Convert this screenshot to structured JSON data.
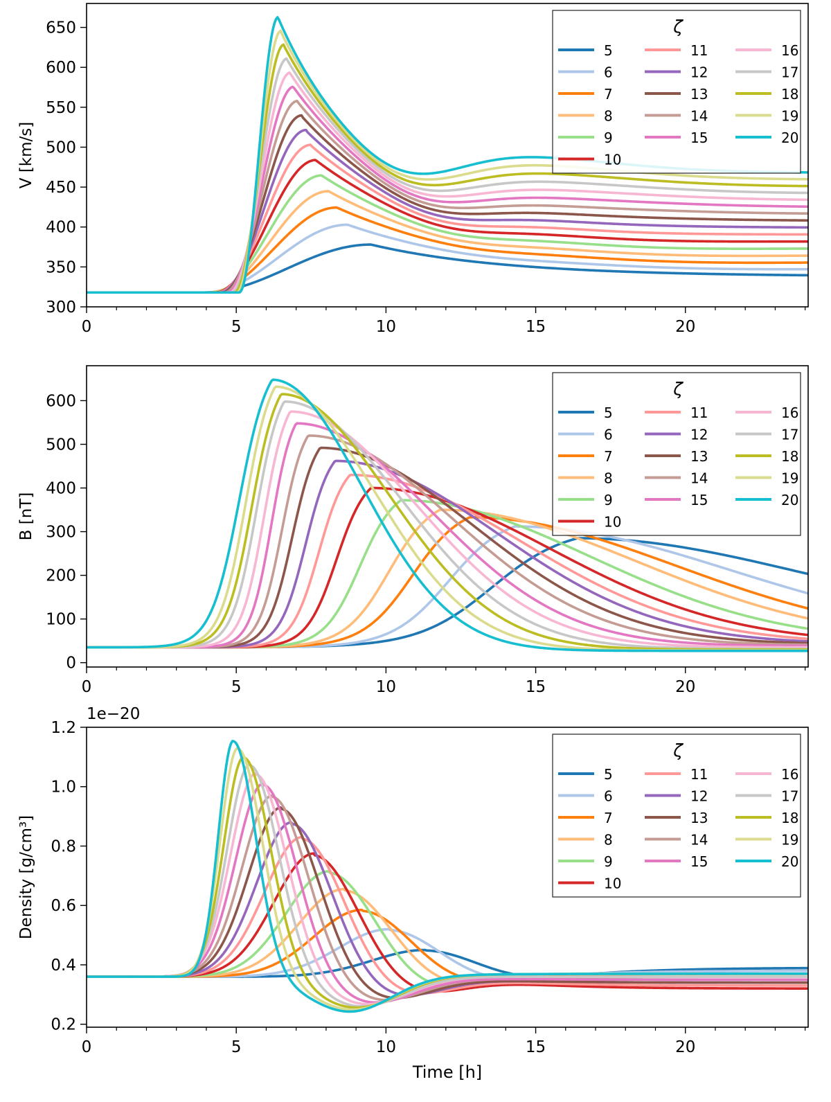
{
  "legend_title": "ζ",
  "series_colors": [
    "#1f77b4",
    "#aec7e8",
    "#ff7f0e",
    "#ffbb78",
    "#98df8a",
    "#d62728",
    "#ff9896",
    "#9467bd",
    "#8c564b",
    "#c49c94",
    "#e377c2",
    "#f7b6d2",
    "#c7c7c7",
    "#bcbd22",
    "#dbdb8d",
    "#17becf"
  ],
  "chart_data": [
    {
      "type": "line",
      "title": "",
      "xlabel": "",
      "ylabel": "V [km/s]",
      "xlim": [
        0,
        24.1
      ],
      "ylim": [
        300,
        680
      ],
      "xticks": [
        0,
        5,
        10,
        15,
        20
      ],
      "yticks": [
        300,
        350,
        400,
        450,
        500,
        550,
        600,
        650
      ],
      "ytick_labels": [
        "300",
        "350",
        "400",
        "450",
        "500",
        "550",
        "600",
        "650"
      ],
      "offset_text": "",
      "legend_title": "ζ",
      "legend_position": "upper right",
      "model": {
        "kind": "velocity",
        "base": 318,
        "t0": 3.9,
        "t0_step": 0.08,
        "rise": 1.35,
        "rise_step": 0.92,
        "peak_lo": 378,
        "peak_hi": 663,
        "decay": 2.3,
        "second_lo": 338,
        "second_hi": 497,
        "second_t_lo": 13.8,
        "second_t_hi": 14.1,
        "end_lo": 338,
        "end_hi": 468
      },
      "series": [
        {
          "name": "5"
        },
        {
          "name": "6"
        },
        {
          "name": "7"
        },
        {
          "name": "8"
        },
        {
          "name": "9"
        },
        {
          "name": "10"
        },
        {
          "name": "11"
        },
        {
          "name": "12"
        },
        {
          "name": "13"
        },
        {
          "name": "14"
        },
        {
          "name": "15"
        },
        {
          "name": "16"
        },
        {
          "name": "17"
        },
        {
          "name": "18"
        },
        {
          "name": "19"
        },
        {
          "name": "20"
        }
      ]
    },
    {
      "type": "line",
      "title": "",
      "xlabel": "",
      "ylabel": "B [nT]",
      "xlim": [
        0,
        24.1
      ],
      "ylim": [
        -10,
        680
      ],
      "xticks": [
        0,
        5,
        10,
        15,
        20
      ],
      "yticks": [
        0,
        100,
        200,
        300,
        400,
        500,
        600
      ],
      "ytick_labels": [
        "0",
        "100",
        "200",
        "300",
        "400",
        "500",
        "600"
      ],
      "offset_text": "",
      "legend_title": "ζ",
      "legend_position": "upper right",
      "model": {
        "kind": "field",
        "base": 35,
        "peaks_t": [
          16.4,
          14.3,
          12.8,
          11.8,
          10.5,
          9.5,
          8.8,
          8.3,
          7.8,
          7.4,
          7.0,
          6.8,
          6.6,
          6.5,
          6.3,
          6.2
        ],
        "peaks_v": [
          285,
          312,
          333,
          350,
          372,
          400,
          430,
          462,
          492,
          520,
          548,
          575,
          598,
          615,
          632,
          648
        ],
        "onsets": [
          11.2,
          10.3,
          9.3,
          8.7,
          8.0,
          7.4,
          6.9,
          6.5,
          6.1,
          5.8,
          5.5,
          5.2,
          4.9,
          4.7,
          4.5,
          4.2
        ],
        "end_v": [
          85,
          58,
          50,
          48,
          46,
          45,
          44,
          43,
          42,
          40,
          38,
          35,
          32,
          30,
          28,
          27
        ]
      },
      "series": [
        {
          "name": "5"
        },
        {
          "name": "6"
        },
        {
          "name": "7"
        },
        {
          "name": "8"
        },
        {
          "name": "9"
        },
        {
          "name": "10"
        },
        {
          "name": "11"
        },
        {
          "name": "12"
        },
        {
          "name": "13"
        },
        {
          "name": "14"
        },
        {
          "name": "15"
        },
        {
          "name": "16"
        },
        {
          "name": "17"
        },
        {
          "name": "18"
        },
        {
          "name": "19"
        },
        {
          "name": "20"
        }
      ]
    },
    {
      "type": "line",
      "title": "",
      "xlabel": "Time [h]",
      "ylabel": "Density [g/cm³]",
      "xlim": [
        0,
        24.1
      ],
      "ylim": [
        0.19,
        1.2
      ],
      "xticks": [
        0,
        5,
        10,
        15,
        20
      ],
      "yticks": [
        0.2,
        0.4,
        0.6,
        0.8,
        1.0,
        1.2
      ],
      "ytick_labels": [
        "0.2",
        "0.4",
        "0.6",
        "0.8",
        "1.0",
        "1.2"
      ],
      "offset_text": "1e−20",
      "legend_title": "ζ",
      "legend_position": "upper right",
      "model": {
        "kind": "density",
        "base": 0.36,
        "peaks_t": [
          11.3,
          10.1,
          9.2,
          8.6,
          8.1,
          7.6,
          7.2,
          6.85,
          6.5,
          6.2,
          5.9,
          5.65,
          5.45,
          5.25,
          5.05,
          4.9
        ],
        "peaks_v": [
          0.45,
          0.52,
          0.585,
          0.655,
          0.715,
          0.775,
          0.83,
          0.88,
          0.93,
          0.97,
          1.01,
          1.045,
          1.075,
          1.1,
          1.13,
          1.155
        ],
        "end_v": [
          0.39,
          0.38,
          0.37,
          0.36,
          0.35,
          0.32,
          0.33,
          0.34,
          0.34,
          0.35,
          0.35,
          0.36,
          0.36,
          0.37,
          0.37,
          0.37
        ]
      },
      "series": [
        {
          "name": "5"
        },
        {
          "name": "6"
        },
        {
          "name": "7"
        },
        {
          "name": "8"
        },
        {
          "name": "9"
        },
        {
          "name": "10"
        },
        {
          "name": "11"
        },
        {
          "name": "12"
        },
        {
          "name": "13"
        },
        {
          "name": "14"
        },
        {
          "name": "15"
        },
        {
          "name": "16"
        },
        {
          "name": "17"
        },
        {
          "name": "18"
        },
        {
          "name": "19"
        },
        {
          "name": "20"
        }
      ]
    }
  ]
}
